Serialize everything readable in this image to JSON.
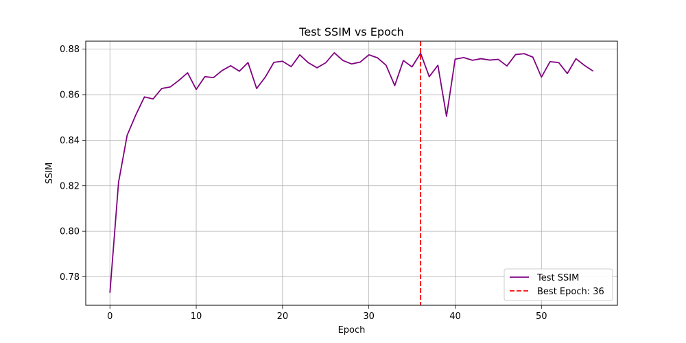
{
  "chart_data": {
    "type": "line",
    "title": "Test SSIM vs Epoch",
    "xlabel": "Epoch",
    "ylabel": "SSIM",
    "xlim": [
      -2.8,
      58.8
    ],
    "ylim": [
      0.7675,
      0.8835
    ],
    "xticks": [
      0,
      10,
      20,
      30,
      40,
      50
    ],
    "yticks": [
      0.78,
      0.8,
      0.82,
      0.84,
      0.86,
      0.88
    ],
    "ytick_labels": [
      "0.78",
      "0.80",
      "0.82",
      "0.84",
      "0.86",
      "0.88"
    ],
    "grid": true,
    "legend_position": "lower-right",
    "series": [
      {
        "name": "Test SSIM",
        "color": "#800080",
        "x": [
          0,
          1,
          2,
          3,
          4,
          5,
          6,
          7,
          8,
          9,
          10,
          11,
          12,
          13,
          14,
          15,
          16,
          17,
          18,
          19,
          20,
          21,
          22,
          23,
          24,
          25,
          26,
          27,
          28,
          29,
          30,
          31,
          32,
          33,
          34,
          35,
          36,
          37,
          38,
          39,
          40,
          41,
          42,
          43,
          44,
          45,
          46,
          47,
          48,
          49,
          50,
          51,
          52,
          53,
          54,
          55,
          56
        ],
        "values": [
          0.773,
          0.8215,
          0.8422,
          0.8511,
          0.859,
          0.8581,
          0.8627,
          0.8634,
          0.8663,
          0.8696,
          0.8623,
          0.8679,
          0.8675,
          0.8706,
          0.8727,
          0.8703,
          0.8741,
          0.8627,
          0.8677,
          0.8742,
          0.8747,
          0.8723,
          0.8775,
          0.874,
          0.8718,
          0.874,
          0.8784,
          0.875,
          0.8735,
          0.8743,
          0.8775,
          0.8762,
          0.8729,
          0.864,
          0.875,
          0.8722,
          0.8782,
          0.8679,
          0.8729,
          0.8505,
          0.8756,
          0.8763,
          0.8751,
          0.8758,
          0.8752,
          0.8755,
          0.8726,
          0.8776,
          0.878,
          0.8765,
          0.8677,
          0.8745,
          0.8741,
          0.8693,
          0.8758,
          0.8728,
          0.8703
        ]
      }
    ],
    "reference_line": {
      "name": "Best Epoch: 36",
      "x": 36,
      "color": "#ff0000",
      "style": "dashed"
    }
  }
}
